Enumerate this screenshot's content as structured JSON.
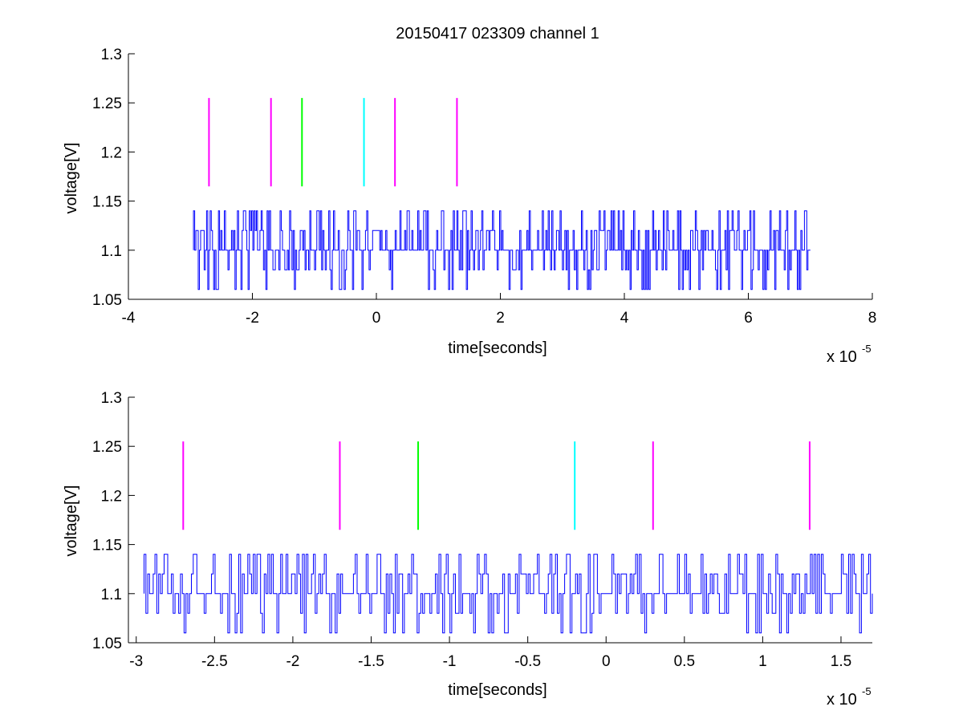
{
  "chart_data": [
    {
      "type": "line",
      "title": "20150417 023309 channel 1",
      "xlabel": "time[seconds]",
      "ylabel": "voltage[V]",
      "x_multiplier": "x 10",
      "x_exponent": "-5",
      "xlim": [
        -4,
        8
      ],
      "ylim": [
        1.05,
        1.3
      ],
      "x_ticks": [
        "-4",
        "-2",
        "0",
        "2",
        "4",
        "6",
        "8"
      ],
      "y_ticks": [
        "1.05",
        "1.1",
        "1.15",
        "1.2",
        "1.25",
        "1.3"
      ],
      "grid": false,
      "series": [
        {
          "color": "#0000ff",
          "x_start": -2.95,
          "x_end": 7.0,
          "baseline": 1.1,
          "levels": [
            1.06,
            1.08,
            1.1,
            1.12,
            1.14
          ]
        }
      ],
      "markers": [
        {
          "x": -2.7,
          "y_low": 1.165,
          "y_high": 1.255,
          "color": "#ff00ff"
        },
        {
          "x": -1.7,
          "y_low": 1.165,
          "y_high": 1.255,
          "color": "#ff00ff"
        },
        {
          "x": -1.2,
          "y_low": 1.165,
          "y_high": 1.255,
          "color": "#00ff00"
        },
        {
          "x": -0.2,
          "y_low": 1.165,
          "y_high": 1.255,
          "color": "#00ffff"
        },
        {
          "x": 0.3,
          "y_low": 1.165,
          "y_high": 1.255,
          "color": "#ff00ff"
        },
        {
          "x": 1.3,
          "y_low": 1.165,
          "y_high": 1.255,
          "color": "#ff00ff"
        }
      ]
    },
    {
      "type": "line",
      "title": "",
      "xlabel": "time[seconds]",
      "ylabel": "voltage[V]",
      "x_multiplier": "x 10",
      "x_exponent": "-5",
      "xlim": [
        -3.05,
        1.7
      ],
      "ylim": [
        1.05,
        1.3
      ],
      "x_ticks": [
        "-3",
        "-2.5",
        "-2",
        "-1.5",
        "-1",
        "-0.5",
        "0",
        "0.5",
        "1",
        "1.5"
      ],
      "y_ticks": [
        "1.05",
        "1.1",
        "1.15",
        "1.2",
        "1.25",
        "1.3"
      ],
      "grid": false,
      "series": [
        {
          "color": "#0000ff",
          "x_start": -2.95,
          "x_end": 1.7,
          "baseline": 1.1,
          "levels": [
            1.06,
            1.08,
            1.1,
            1.12,
            1.14
          ]
        }
      ],
      "markers": [
        {
          "x": -2.7,
          "y_low": 1.165,
          "y_high": 1.255,
          "color": "#ff00ff"
        },
        {
          "x": -1.7,
          "y_low": 1.165,
          "y_high": 1.255,
          "color": "#ff00ff"
        },
        {
          "x": -1.2,
          "y_low": 1.165,
          "y_high": 1.255,
          "color": "#00ff00"
        },
        {
          "x": -0.2,
          "y_low": 1.165,
          "y_high": 1.255,
          "color": "#00ffff"
        },
        {
          "x": 0.3,
          "y_low": 1.165,
          "y_high": 1.255,
          "color": "#ff00ff"
        },
        {
          "x": 1.3,
          "y_low": 1.165,
          "y_high": 1.255,
          "color": "#ff00ff"
        }
      ]
    }
  ]
}
